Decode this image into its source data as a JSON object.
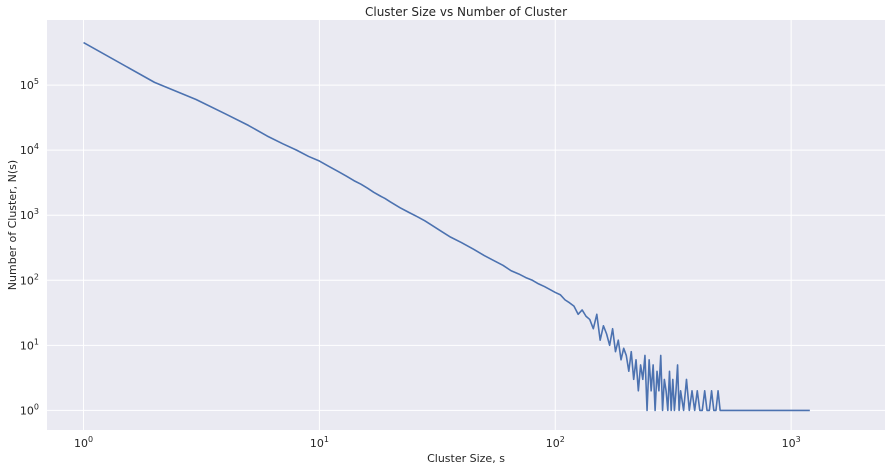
{
  "chart_data": {
    "type": "line",
    "title": "Cluster Size vs Number of Cluster",
    "xlabel": "Cluster Size, s",
    "ylabel": "Number of Cluster, N(s)",
    "xscale": "log",
    "yscale": "log",
    "xlim": [
      0.7,
      2500
    ],
    "ylim": [
      0.5,
      1000000
    ],
    "grid": true,
    "x_ticks": [
      {
        "value": 1,
        "base": "10",
        "exp": "0"
      },
      {
        "value": 10,
        "base": "10",
        "exp": "1"
      },
      {
        "value": 100,
        "base": "10",
        "exp": "2"
      },
      {
        "value": 1000,
        "base": "10",
        "exp": "3"
      }
    ],
    "y_ticks": [
      {
        "value": 1,
        "base": "10",
        "exp": "0"
      },
      {
        "value": 10,
        "base": "10",
        "exp": "1"
      },
      {
        "value": 100,
        "base": "10",
        "exp": "2"
      },
      {
        "value": 1000,
        "base": "10",
        "exp": "3"
      },
      {
        "value": 10000,
        "base": "10",
        "exp": "4"
      },
      {
        "value": 100000,
        "base": "10",
        "exp": "5"
      }
    ],
    "colors": {
      "line": "#4c72b0",
      "background": "#eaeaf2",
      "grid": "#ffffff"
    },
    "series": [
      {
        "points": [
          [
            1,
            450000
          ],
          [
            2,
            110000
          ],
          [
            3,
            60000
          ],
          [
            4,
            36000
          ],
          [
            5,
            24000
          ],
          [
            6,
            16500
          ],
          [
            7,
            12500
          ],
          [
            8,
            10000
          ],
          [
            9,
            8000
          ],
          [
            10,
            6800
          ],
          [
            11,
            5600
          ],
          [
            12,
            4700
          ],
          [
            13,
            4000
          ],
          [
            14,
            3400
          ],
          [
            15,
            3000
          ],
          [
            16,
            2600
          ],
          [
            17,
            2250
          ],
          [
            18,
            2000
          ],
          [
            19,
            1800
          ],
          [
            20,
            1600
          ],
          [
            22,
            1300
          ],
          [
            24,
            1100
          ],
          [
            26,
            950
          ],
          [
            28,
            820
          ],
          [
            30,
            700
          ],
          [
            33,
            560
          ],
          [
            36,
            460
          ],
          [
            40,
            380
          ],
          [
            45,
            300
          ],
          [
            50,
            240
          ],
          [
            55,
            200
          ],
          [
            60,
            170
          ],
          [
            65,
            140
          ],
          [
            70,
            125
          ],
          [
            75,
            110
          ],
          [
            80,
            100
          ],
          [
            85,
            88
          ],
          [
            90,
            80
          ],
          [
            95,
            72
          ],
          [
            100,
            65
          ],
          [
            105,
            60
          ],
          [
            110,
            50
          ],
          [
            115,
            45
          ],
          [
            120,
            40
          ],
          [
            125,
            30
          ],
          [
            130,
            35
          ],
          [
            135,
            28
          ],
          [
            140,
            25
          ],
          [
            145,
            18
          ],
          [
            150,
            30
          ],
          [
            155,
            12
          ],
          [
            160,
            20
          ],
          [
            165,
            15
          ],
          [
            170,
            10
          ],
          [
            175,
            18
          ],
          [
            180,
            8
          ],
          [
            185,
            12
          ],
          [
            190,
            6
          ],
          [
            195,
            9
          ],
          [
            200,
            7
          ],
          [
            205,
            4
          ],
          [
            210,
            8
          ],
          [
            215,
            3
          ],
          [
            220,
            6
          ],
          [
            225,
            2
          ],
          [
            230,
            5
          ],
          [
            235,
            3
          ],
          [
            240,
            7
          ],
          [
            245,
            1
          ],
          [
            250,
            6
          ],
          [
            255,
            2
          ],
          [
            260,
            5
          ],
          [
            265,
            1
          ],
          [
            270,
            4
          ],
          [
            275,
            2
          ],
          [
            280,
            7
          ],
          [
            285,
            1
          ],
          [
            290,
            3
          ],
          [
            295,
            2
          ],
          [
            300,
            1
          ],
          [
            305,
            4
          ],
          [
            310,
            1
          ],
          [
            315,
            3
          ],
          [
            320,
            1
          ],
          [
            325,
            2
          ],
          [
            330,
            5
          ],
          [
            335,
            1
          ],
          [
            340,
            2
          ],
          [
            350,
            1
          ],
          [
            360,
            3
          ],
          [
            370,
            1
          ],
          [
            380,
            2
          ],
          [
            390,
            1
          ],
          [
            400,
            2
          ],
          [
            410,
            1
          ],
          [
            420,
            1
          ],
          [
            430,
            2
          ],
          [
            440,
            1
          ],
          [
            450,
            1
          ],
          [
            460,
            2
          ],
          [
            470,
            1
          ],
          [
            480,
            1
          ],
          [
            490,
            2
          ],
          [
            500,
            1
          ],
          [
            600,
            1
          ],
          [
            800,
            1
          ],
          [
            1000,
            1
          ],
          [
            1200,
            1
          ]
        ]
      }
    ]
  }
}
